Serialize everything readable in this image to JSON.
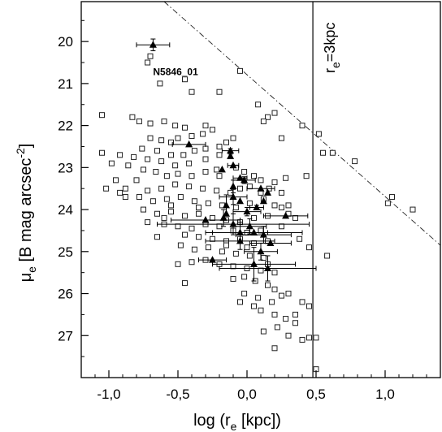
{
  "chart_data": {
    "type": "scatter",
    "title": "",
    "xlabel": {
      "main": "log (r",
      "sub": "e",
      "tail": " [kpc])"
    },
    "ylabel": {
      "main": "μ",
      "sub": "e",
      "mid": " [B mag arcsec",
      "sup": "-2",
      "tail": "]"
    },
    "xlim": [
      -1.2,
      1.4
    ],
    "ylim": [
      28.0,
      19.05
    ],
    "y_inverted": true,
    "x_ticks": [
      -1.0,
      -0.5,
      0.0,
      0.5,
      1.0
    ],
    "x_tick_labels": [
      "-1,0",
      "-0,5",
      "0,0",
      "0,5",
      "1,0"
    ],
    "y_ticks": [
      20,
      21,
      22,
      23,
      24,
      25,
      26,
      27
    ],
    "y_tick_labels": [
      "20",
      "21",
      "22",
      "23",
      "24",
      "25",
      "26",
      "27"
    ],
    "grid": false,
    "annotations": {
      "vertical_line": {
        "x": 0.477,
        "label_main": "r",
        "label_sub": "e",
        "label_tail": "=3kpc"
      },
      "dash_dot_line": {
        "x": [
          -0.6,
          1.4
        ],
        "y": [
          19.05,
          24.85
        ]
      },
      "point_label": {
        "text": "N5846_01",
        "x": -0.68,
        "y": 20.8
      }
    },
    "series": [
      {
        "marker": "open-square",
        "points": [
          [
            -0.7,
            20.35
          ],
          [
            -0.72,
            20.5
          ],
          [
            -0.63,
            21.0
          ],
          [
            -0.45,
            20.9
          ],
          [
            -0.4,
            21.2
          ],
          [
            -0.2,
            21.2
          ],
          [
            -0.05,
            20.7
          ],
          [
            0.08,
            21.5
          ],
          [
            0.15,
            21.8
          ],
          [
            0.2,
            21.7
          ],
          [
            0.12,
            21.9
          ],
          [
            0.25,
            22.3
          ],
          [
            0.4,
            22.0
          ],
          [
            0.43,
            23.2
          ],
          [
            -1.05,
            21.75
          ],
          [
            -0.83,
            21.8
          ],
          [
            -0.78,
            21.9
          ],
          [
            -0.7,
            21.95
          ],
          [
            -0.6,
            21.9
          ],
          [
            -0.52,
            22.0
          ],
          [
            -0.45,
            22.05
          ],
          [
            -0.3,
            22.0
          ],
          [
            -0.25,
            22.1
          ],
          [
            -0.32,
            22.2
          ],
          [
            -0.4,
            22.25
          ],
          [
            -0.5,
            22.3
          ],
          [
            -0.55,
            22.4
          ],
          [
            -0.62,
            22.35
          ],
          [
            -0.7,
            22.3
          ],
          [
            -0.76,
            22.55
          ],
          [
            -0.65,
            22.6
          ],
          [
            -0.55,
            22.7
          ],
          [
            -0.46,
            22.7
          ],
          [
            -0.38,
            22.6
          ],
          [
            -0.3,
            22.55
          ],
          [
            -0.2,
            22.5
          ],
          [
            -0.15,
            22.4
          ],
          [
            -0.1,
            22.3
          ],
          [
            -0.2,
            22.7
          ],
          [
            -0.3,
            22.8
          ],
          [
            -0.42,
            22.9
          ],
          [
            -0.52,
            22.95
          ],
          [
            -0.62,
            22.85
          ],
          [
            -0.72,
            22.8
          ],
          [
            -0.82,
            22.75
          ],
          [
            -0.92,
            22.7
          ],
          [
            -0.86,
            22.95
          ],
          [
            -0.75,
            23.05
          ],
          [
            -0.66,
            23.1
          ],
          [
            -0.58,
            23.2
          ],
          [
            -0.5,
            23.15
          ],
          [
            -0.4,
            23.2
          ],
          [
            -0.3,
            23.1
          ],
          [
            -0.22,
            23.05
          ],
          [
            -0.08,
            23.0
          ],
          [
            -0.02,
            23.1
          ],
          [
            0.05,
            23.2
          ],
          [
            0.1,
            23.3
          ],
          [
            0.2,
            23.35
          ],
          [
            0.16,
            23.5
          ],
          [
            0.25,
            23.6
          ],
          [
            0.02,
            23.45
          ],
          [
            -0.05,
            23.5
          ],
          [
            -0.12,
            23.6
          ],
          [
            -0.22,
            23.55
          ],
          [
            -0.32,
            23.5
          ],
          [
            -0.42,
            23.45
          ],
          [
            -0.52,
            23.4
          ],
          [
            -0.62,
            23.5
          ],
          [
            -0.72,
            23.55
          ],
          [
            -0.8,
            23.3
          ],
          [
            -0.88,
            23.5
          ],
          [
            -0.78,
            23.7
          ],
          [
            -0.68,
            23.8
          ],
          [
            -0.58,
            23.75
          ],
          [
            -0.48,
            23.7
          ],
          [
            -0.38,
            23.8
          ],
          [
            -0.28,
            23.85
          ],
          [
            -0.18,
            23.9
          ],
          [
            -0.08,
            23.95
          ],
          [
            0.02,
            23.85
          ],
          [
            0.12,
            23.75
          ],
          [
            0.2,
            23.9
          ],
          [
            0.25,
            23.95
          ],
          [
            -0.75,
            24.0
          ],
          [
            -0.65,
            24.1
          ],
          [
            -0.55,
            24.05
          ],
          [
            -0.45,
            24.15
          ],
          [
            -0.35,
            24.1
          ],
          [
            -0.25,
            24.2
          ],
          [
            -0.15,
            24.25
          ],
          [
            -0.05,
            24.3
          ],
          [
            0.05,
            24.2
          ],
          [
            0.15,
            24.15
          ],
          [
            -0.6,
            24.35
          ],
          [
            -0.5,
            24.4
          ],
          [
            -0.4,
            24.45
          ],
          [
            -0.3,
            24.35
          ],
          [
            -0.2,
            24.4
          ],
          [
            -0.1,
            24.5
          ],
          [
            0.0,
            24.55
          ],
          [
            0.1,
            24.5
          ],
          [
            -0.45,
            24.6
          ],
          [
            -0.35,
            24.65
          ],
          [
            -0.25,
            24.7
          ],
          [
            -0.15,
            24.75
          ],
          [
            -0.05,
            24.7
          ],
          [
            0.05,
            24.8
          ],
          [
            0.15,
            24.75
          ],
          [
            -0.65,
            24.65
          ],
          [
            -0.48,
            24.85
          ],
          [
            -0.38,
            24.95
          ],
          [
            -0.28,
            24.9
          ],
          [
            -0.18,
            25.0
          ],
          [
            -0.08,
            25.05
          ],
          [
            0.02,
            25.1
          ],
          [
            0.12,
            25.15
          ],
          [
            -0.3,
            25.2
          ],
          [
            -0.4,
            25.25
          ],
          [
            -0.5,
            25.3
          ],
          [
            -0.2,
            25.3
          ],
          [
            -0.1,
            25.35
          ],
          [
            0.0,
            25.4
          ],
          [
            0.1,
            25.45
          ],
          [
            -0.02,
            25.6
          ],
          [
            0.06,
            25.7
          ],
          [
            -0.1,
            25.65
          ],
          [
            0.15,
            25.8
          ],
          [
            0.2,
            25.9
          ],
          [
            -0.02,
            26.0
          ],
          [
            0.08,
            26.1
          ],
          [
            0.18,
            26.2
          ],
          [
            0.3,
            26.0
          ],
          [
            -0.45,
            25.75
          ],
          [
            0.1,
            26.4
          ],
          [
            0.2,
            26.5
          ],
          [
            0.28,
            26.6
          ],
          [
            0.22,
            26.8
          ],
          [
            0.35,
            26.5
          ],
          [
            0.12,
            26.9
          ],
          [
            0.3,
            27.0
          ],
          [
            0.4,
            27.1
          ],
          [
            0.45,
            27.05
          ],
          [
            0.2,
            27.3
          ],
          [
            0.45,
            26.3
          ],
          [
            0.5,
            27.05
          ],
          [
            0.5,
            27.8
          ],
          [
            -1.05,
            22.65
          ],
          [
            -0.98,
            22.9
          ],
          [
            -1.02,
            23.5
          ],
          [
            -0.95,
            23.3
          ],
          [
            -0.88,
            23.7
          ],
          [
            -0.92,
            23.6
          ],
          [
            -0.55,
            23.9
          ],
          [
            -0.72,
            24.3
          ],
          [
            -0.15,
            24.85
          ],
          [
            0.0,
            24.9
          ],
          [
            0.38,
            24.7
          ],
          [
            0.45,
            24.9
          ],
          [
            0.3,
            24.1
          ],
          [
            0.25,
            24.4
          ],
          [
            0.15,
            25.3
          ],
          [
            0.2,
            25.5
          ],
          [
            -0.05,
            26.2
          ],
          [
            0.05,
            26.3
          ],
          [
            0.25,
            26.05
          ],
          [
            0.35,
            26.7
          ],
          [
            0.4,
            26.2
          ],
          [
            0.58,
            25.1
          ],
          [
            0.55,
            22.65
          ],
          [
            0.52,
            22.2
          ],
          [
            0.62,
            22.65
          ],
          [
            0.78,
            22.85
          ],
          [
            1.05,
            23.7
          ],
          [
            1.02,
            23.85
          ],
          [
            1.2,
            24.0
          ],
          [
            0.1,
            23.6
          ],
          [
            0.3,
            23.9
          ],
          [
            0.35,
            24.2
          ],
          [
            -0.35,
            23.95
          ],
          [
            -0.6,
            24.2
          ],
          [
            -0.2,
            23.2
          ],
          [
            0.28,
            23.25
          ]
        ]
      },
      {
        "marker": "filled-triangle",
        "points": [
          {
            "x": -0.68,
            "y": 20.08,
            "xerr": 0.12,
            "yerr": 0.14
          },
          {
            "x": -0.42,
            "y": 22.45,
            "xerr": 0.12,
            "yerr": 0
          },
          {
            "x": -0.12,
            "y": 22.6,
            "xerr": 0.06,
            "yerr": 0.05
          },
          {
            "x": -0.12,
            "y": 22.73,
            "xerr": 0,
            "yerr": 0.05
          },
          {
            "x": -0.1,
            "y": 22.95,
            "xerr": 0.04,
            "yerr": 0
          },
          {
            "x": -0.18,
            "y": 23.05,
            "xerr": 0,
            "yerr": 0
          },
          {
            "x": -0.05,
            "y": 23.25,
            "xerr": 0.05,
            "yerr": 0
          },
          {
            "x": -0.1,
            "y": 23.45,
            "xerr": 0,
            "yerr": 0.15
          },
          {
            "x": -0.02,
            "y": 23.3,
            "xerr": 0.08,
            "yerr": 0.08
          },
          {
            "x": 0.1,
            "y": 23.5,
            "xerr": 0.1,
            "yerr": 0
          },
          {
            "x": 0.15,
            "y": 23.6,
            "xerr": 0,
            "yerr": 0
          },
          {
            "x": 0.12,
            "y": 23.8,
            "xerr": 0,
            "yerr": 0
          },
          {
            "x": -0.1,
            "y": 23.7,
            "xerr": 0.1,
            "yerr": 0.18
          },
          {
            "x": -0.15,
            "y": 23.9,
            "xerr": 0,
            "yerr": 0.25
          },
          {
            "x": -0.05,
            "y": 23.8,
            "xerr": 0,
            "yerr": 0
          },
          {
            "x": 0.0,
            "y": 24.05,
            "xerr": 0.1,
            "yerr": 0.1
          },
          {
            "x": 0.07,
            "y": 23.95,
            "xerr": 0.05,
            "yerr": 0.05
          },
          {
            "x": -0.15,
            "y": 24.1,
            "xerr": 0,
            "yerr": 0
          },
          {
            "x": -0.3,
            "y": 24.25,
            "xerr": 0.25,
            "yerr": 0
          },
          {
            "x": -0.17,
            "y": 24.2,
            "xerr": 0,
            "yerr": 0.2
          },
          {
            "x": -0.1,
            "y": 24.35,
            "xerr": 0.55,
            "yerr": 0.25
          },
          {
            "x": -0.05,
            "y": 24.55,
            "xerr": 0.2,
            "yerr": 0.25
          },
          {
            "x": 0.05,
            "y": 24.55,
            "xerr": 0.35,
            "yerr": 0
          },
          {
            "x": 0.12,
            "y": 24.6,
            "xerr": 0.2,
            "yerr": 0.2
          },
          {
            "x": 0.17,
            "y": 24.8,
            "xerr": 0.15,
            "yerr": 0
          },
          {
            "x": 0.28,
            "y": 24.15,
            "xerr": 0.16,
            "yerr": 0
          },
          {
            "x": -0.05,
            "y": 24.75,
            "xerr": 0.25,
            "yerr": 0.2
          },
          {
            "x": 0.1,
            "y": 25.0,
            "xerr": 0.12,
            "yerr": 0.2
          },
          {
            "x": 0.05,
            "y": 25.3,
            "xerr": 0.3,
            "yerr": 0.4
          },
          {
            "x": 0.15,
            "y": 25.4,
            "xerr": 0.35,
            "yerr": 0.3
          },
          {
            "x": -0.25,
            "y": 25.2,
            "xerr": 0.1,
            "yerr": 0
          },
          {
            "x": 0.02,
            "y": 24.4,
            "xerr": 0.12,
            "yerr": 0.18
          }
        ]
      }
    ]
  }
}
